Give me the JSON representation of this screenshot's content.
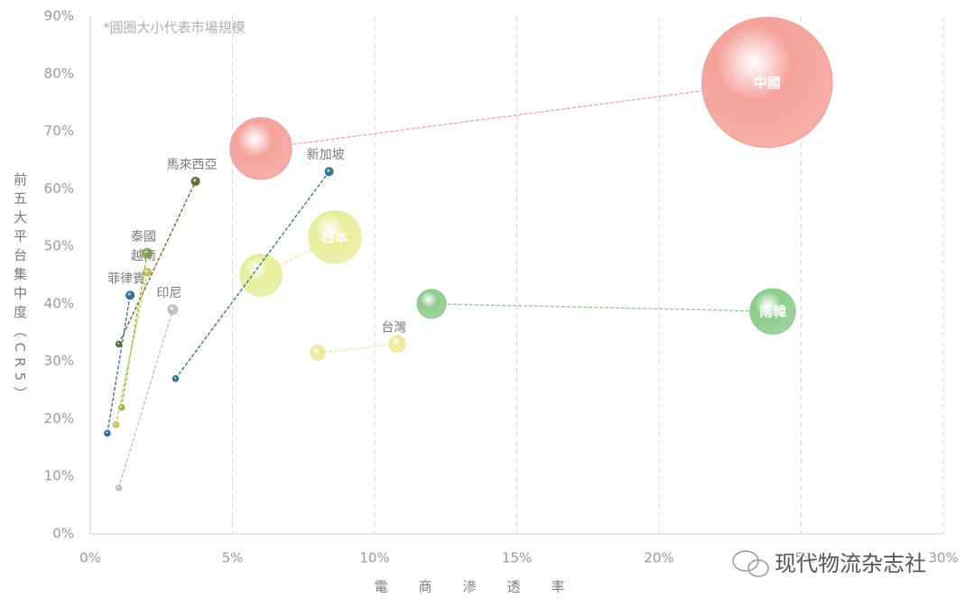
{
  "chart_data": {
    "type": "bubble",
    "note": "*圓圈大小代表市場規模",
    "y_label": "前五大平台集中度（CR5）",
    "x_label": "電商滲透率",
    "watermark": "现代物流杂志社",
    "xlim": [
      0,
      30
    ],
    "ylim": [
      0,
      90
    ],
    "xticks": [
      {
        "value": 0,
        "label": "0%"
      },
      {
        "value": 5,
        "label": "5%"
      },
      {
        "value": 10,
        "label": "10%"
      },
      {
        "value": 15,
        "label": "15%"
      },
      {
        "value": 20,
        "label": "20%"
      },
      {
        "value": 25,
        "label": "25%"
      },
      {
        "value": 30,
        "label": "30%"
      }
    ],
    "yticks": [
      {
        "value": 0,
        "label": "0%"
      },
      {
        "value": 10,
        "label": "10%"
      },
      {
        "value": 20,
        "label": "20%"
      },
      {
        "value": 30,
        "label": "30%"
      },
      {
        "value": 40,
        "label": "40%"
      },
      {
        "value": 50,
        "label": "50%"
      },
      {
        "value": 60,
        "label": "60%"
      },
      {
        "value": 70,
        "label": "70%"
      },
      {
        "value": 80,
        "label": "80%"
      },
      {
        "value": 90,
        "label": "90%"
      }
    ],
    "grid": true,
    "series": [
      {
        "name": "中國",
        "color": "#f4a199",
        "x": [
          6.0,
          23.8
        ],
        "values": [
          67,
          78.5
        ],
        "sizes": [
          128,
          576
        ]
      },
      {
        "name": "南韓",
        "color": "#8dcc8d",
        "x": [
          12.0,
          24.0
        ],
        "values": [
          40,
          38.7
        ],
        "sizes": [
          28,
          69
        ]
      },
      {
        "name": "日本",
        "color": "#e6ee9c",
        "x": [
          6.0,
          8.6
        ],
        "values": [
          45,
          51.6
        ],
        "sizes": [
          59,
          93
        ]
      },
      {
        "name": "台灣",
        "color": "#ecea98",
        "x": [
          8.0,
          10.8
        ],
        "values": [
          31.5,
          33
        ],
        "sizes": [
          7,
          9
        ]
      },
      {
        "name": "新加坡",
        "color": "#2e6e8e",
        "x": [
          3.0,
          8.4
        ],
        "values": [
          27,
          63
        ],
        "sizes": [
          1,
          2
        ]
      },
      {
        "name": "馬來西亞",
        "color": "#5a6a2a",
        "x": [
          1.0,
          3.7
        ],
        "values": [
          33,
          61.3
        ],
        "sizes": [
          1,
          2
        ]
      },
      {
        "name": "泰國",
        "color": "#8ab83a",
        "x": [
          1.1,
          2.0
        ],
        "values": [
          22,
          48.8
        ],
        "sizes": [
          1,
          3
        ]
      },
      {
        "name": "越南",
        "color": "#c8c050",
        "x": [
          0.9,
          2.0
        ],
        "values": [
          19,
          45.5
        ],
        "sizes": [
          1,
          2
        ]
      },
      {
        "name": "菲律賓",
        "color": "#2a6a9a",
        "x": [
          0.6,
          1.4
        ],
        "values": [
          17.5,
          41.5
        ],
        "sizes": [
          1,
          2
        ]
      },
      {
        "name": "印尼",
        "color": "#b8c0c8",
        "x": [
          1.0,
          2.9
        ],
        "values": [
          8,
          39
        ],
        "sizes": [
          1,
          3
        ]
      }
    ]
  }
}
